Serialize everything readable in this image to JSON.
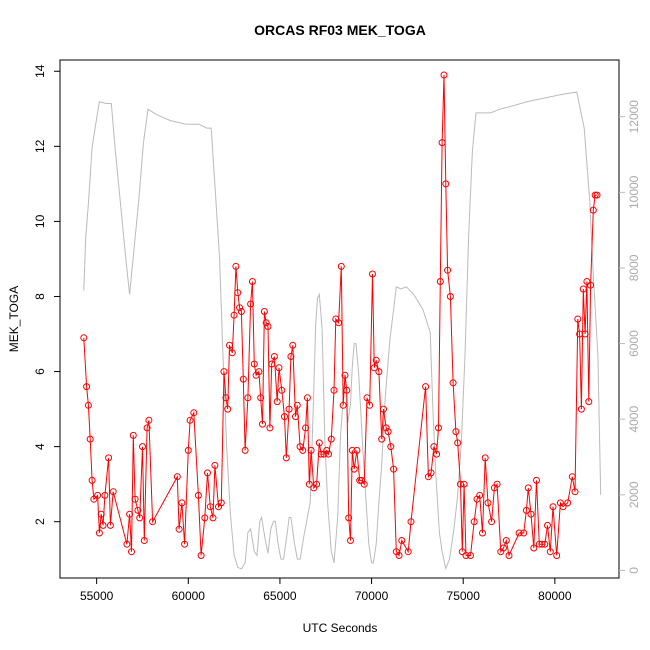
{
  "chart_data": {
    "type": "line",
    "title": "ORCAS RF03 MEK_TOGA",
    "xlabel": "UTC Seconds",
    "ylabel": "MEK_TOGA",
    "xlim": [
      53000,
      83500
    ],
    "ylim": [
      0.5,
      14.3
    ],
    "y2lim": [
      -200,
      13500
    ],
    "xticks": [
      55000,
      60000,
      65000,
      70000,
      75000,
      80000
    ],
    "xtick_labels": [
      "55000",
      "60000",
      "65000",
      "70000",
      "75000",
      "80000"
    ],
    "yticks": [
      2,
      4,
      6,
      8,
      10,
      12,
      14
    ],
    "ytick_labels": [
      "2",
      "4",
      "6",
      "8",
      "10",
      "12",
      "14"
    ],
    "y2ticks": [
      0,
      2000,
      4000,
      6000,
      8000,
      10000,
      12000
    ],
    "y2tick_labels": [
      "0",
      "2000",
      "4000",
      "6000",
      "8000",
      "10000",
      "12000"
    ],
    "grid": false,
    "colors": {
      "series": "#ff0000",
      "altitude": "#bbbbbb"
    },
    "series": [
      {
        "values": [
          [
            54300,
            6.9
          ],
          [
            54450,
            5.6
          ],
          [
            54550,
            5.1
          ],
          [
            54650,
            4.2
          ],
          [
            54750,
            3.1
          ],
          [
            54850,
            2.6
          ],
          [
            55050,
            2.7
          ],
          [
            55150,
            1.7
          ],
          [
            55250,
            2.2
          ],
          [
            55350,
            1.9
          ],
          [
            55450,
            2.7
          ],
          [
            55650,
            3.7
          ],
          [
            55750,
            1.9
          ],
          [
            55900,
            2.8
          ],
          [
            56650,
            1.4
          ],
          [
            56800,
            2.2
          ],
          [
            56900,
            1.2
          ],
          [
            57000,
            4.3
          ],
          [
            57100,
            2.6
          ],
          [
            57250,
            2.3
          ],
          [
            57350,
            2.1
          ],
          [
            57500,
            4.0
          ],
          [
            57600,
            1.5
          ],
          [
            57750,
            4.5
          ],
          [
            57850,
            4.7
          ],
          [
            58050,
            2.0
          ],
          [
            59400,
            3.2
          ],
          [
            59500,
            1.8
          ],
          [
            59650,
            2.5
          ],
          [
            59800,
            1.4
          ],
          [
            60000,
            3.9
          ],
          [
            60100,
            4.7
          ],
          [
            60300,
            4.9
          ],
          [
            60550,
            2.7
          ],
          [
            60700,
            1.1
          ],
          [
            60900,
            2.1
          ],
          [
            61050,
            3.3
          ],
          [
            61200,
            2.4
          ],
          [
            61350,
            2.1
          ],
          [
            61450,
            3.5
          ],
          [
            61650,
            2.4
          ],
          [
            61800,
            2.5
          ],
          [
            61950,
            6.0
          ],
          [
            62050,
            5.3
          ],
          [
            62150,
            5.0
          ],
          [
            62250,
            6.7
          ],
          [
            62400,
            6.5
          ],
          [
            62500,
            7.5
          ],
          [
            62600,
            8.8
          ],
          [
            62700,
            8.1
          ],
          [
            62800,
            7.7
          ],
          [
            62900,
            7.6
          ],
          [
            63000,
            5.8
          ],
          [
            63100,
            3.9
          ],
          [
            63250,
            5.3
          ],
          [
            63400,
            7.8
          ],
          [
            63500,
            8.4
          ],
          [
            63600,
            6.2
          ],
          [
            63700,
            5.9
          ],
          [
            63850,
            6.0
          ],
          [
            63950,
            5.3
          ],
          [
            64050,
            4.6
          ],
          [
            64150,
            7.6
          ],
          [
            64250,
            7.3
          ],
          [
            64350,
            7.2
          ],
          [
            64450,
            4.5
          ],
          [
            64550,
            6.2
          ],
          [
            64700,
            6.4
          ],
          [
            64850,
            5.2
          ],
          [
            64950,
            6.1
          ],
          [
            65100,
            5.5
          ],
          [
            65250,
            4.8
          ],
          [
            65350,
            3.7
          ],
          [
            65500,
            5.0
          ],
          [
            65600,
            6.4
          ],
          [
            65700,
            6.7
          ],
          [
            65850,
            4.8
          ],
          [
            65950,
            5.1
          ],
          [
            66100,
            4.0
          ],
          [
            66250,
            3.9
          ],
          [
            66400,
            4.5
          ],
          [
            66500,
            5.3
          ],
          [
            66600,
            3.0
          ],
          [
            66700,
            3.9
          ],
          [
            66850,
            2.9
          ],
          [
            67000,
            3.0
          ],
          [
            67150,
            4.1
          ],
          [
            67250,
            3.8
          ],
          [
            67400,
            3.8
          ],
          [
            67550,
            3.9
          ],
          [
            67650,
            3.8
          ],
          [
            67800,
            4.2
          ],
          [
            67950,
            5.5
          ],
          [
            68050,
            7.4
          ],
          [
            68200,
            7.3
          ],
          [
            68350,
            8.8
          ],
          [
            68450,
            5.1
          ],
          [
            68550,
            5.9
          ],
          [
            68650,
            5.5
          ],
          [
            68750,
            2.1
          ],
          [
            68850,
            1.5
          ],
          [
            68950,
            3.9
          ],
          [
            69050,
            3.4
          ],
          [
            69200,
            3.9
          ],
          [
            69350,
            3.1
          ],
          [
            69450,
            3.1
          ],
          [
            69600,
            3.0
          ],
          [
            69750,
            5.3
          ],
          [
            69900,
            5.1
          ],
          [
            70050,
            8.6
          ],
          [
            70150,
            6.1
          ],
          [
            70250,
            6.3
          ],
          [
            70400,
            6.0
          ],
          [
            70550,
            4.2
          ],
          [
            70650,
            5.0
          ],
          [
            70800,
            4.5
          ],
          [
            70900,
            4.4
          ],
          [
            71050,
            4.0
          ],
          [
            71200,
            3.4
          ],
          [
            71350,
            1.2
          ],
          [
            71500,
            1.1
          ],
          [
            71650,
            1.5
          ],
          [
            72000,
            1.2
          ],
          [
            72150,
            2.0
          ],
          [
            72950,
            5.6
          ],
          [
            73100,
            3.2
          ],
          [
            73250,
            3.3
          ],
          [
            73400,
            4.0
          ],
          [
            73550,
            3.8
          ],
          [
            73650,
            4.5
          ],
          [
            73750,
            8.4
          ],
          [
            73850,
            12.1
          ],
          [
            73950,
            13.9
          ],
          [
            74050,
            11.0
          ],
          [
            74150,
            8.7
          ],
          [
            74300,
            8.0
          ],
          [
            74450,
            5.7
          ],
          [
            74600,
            4.4
          ],
          [
            74700,
            4.1
          ],
          [
            74850,
            3.0
          ],
          [
            74950,
            1.2
          ],
          [
            75050,
            3.0
          ],
          [
            75150,
            1.1
          ],
          [
            75400,
            1.1
          ],
          [
            75600,
            2.0
          ],
          [
            75750,
            2.6
          ],
          [
            75900,
            2.7
          ],
          [
            76050,
            1.7
          ],
          [
            76200,
            3.7
          ],
          [
            76350,
            2.5
          ],
          [
            76550,
            2.0
          ],
          [
            76700,
            2.9
          ],
          [
            76850,
            3.0
          ],
          [
            77050,
            1.2
          ],
          [
            77200,
            1.3
          ],
          [
            77350,
            1.5
          ],
          [
            77500,
            1.1
          ],
          [
            78050,
            1.7
          ],
          [
            78300,
            1.7
          ],
          [
            78450,
            2.3
          ],
          [
            78550,
            2.9
          ],
          [
            78700,
            2.2
          ],
          [
            78850,
            1.3
          ],
          [
            79000,
            3.1
          ],
          [
            79150,
            1.4
          ],
          [
            79300,
            1.4
          ],
          [
            79450,
            1.4
          ],
          [
            79600,
            1.9
          ],
          [
            79750,
            1.2
          ],
          [
            79900,
            2.4
          ],
          [
            80100,
            1.1
          ],
          [
            80300,
            2.5
          ],
          [
            80450,
            2.4
          ],
          [
            80700,
            2.5
          ],
          [
            80950,
            3.2
          ],
          [
            81100,
            2.8
          ],
          [
            81250,
            7.4
          ],
          [
            81350,
            7.0
          ],
          [
            81450,
            5.0
          ],
          [
            81550,
            8.2
          ],
          [
            81650,
            7.0
          ],
          [
            81750,
            8.4
          ],
          [
            81850,
            5.2
          ],
          [
            81950,
            8.3
          ],
          [
            82100,
            10.3
          ],
          [
            82200,
            10.7
          ],
          [
            82300,
            10.7
          ]
        ]
      },
      {
        "axis": "right",
        "values": [
          [
            54300,
            7400
          ],
          [
            54400,
            8800
          ],
          [
            54550,
            9700
          ],
          [
            54750,
            11200
          ],
          [
            54950,
            11800
          ],
          [
            55150,
            12400
          ],
          [
            55500,
            12350
          ],
          [
            55800,
            12350
          ],
          [
            56000,
            11200
          ],
          [
            56300,
            9700
          ],
          [
            56600,
            8200
          ],
          [
            56800,
            7300
          ],
          [
            57000,
            8300
          ],
          [
            57300,
            9800
          ],
          [
            57550,
            11300
          ],
          [
            57800,
            12200
          ],
          [
            58300,
            12050
          ],
          [
            59000,
            11900
          ],
          [
            59900,
            11800
          ],
          [
            60600,
            11800
          ],
          [
            61000,
            11700
          ],
          [
            61250,
            11700
          ],
          [
            61450,
            10200
          ],
          [
            61700,
            8300
          ],
          [
            61900,
            5600
          ],
          [
            62100,
            3200
          ],
          [
            62300,
            1500
          ],
          [
            62500,
            400
          ],
          [
            62700,
            80
          ],
          [
            62900,
            40
          ],
          [
            63100,
            200
          ],
          [
            63250,
            1000
          ],
          [
            63400,
            1100
          ],
          [
            63600,
            500
          ],
          [
            63750,
            400
          ],
          [
            63900,
            1300
          ],
          [
            64000,
            1400
          ],
          [
            64200,
            800
          ],
          [
            64350,
            450
          ],
          [
            64500,
            1100
          ],
          [
            64650,
            1300
          ],
          [
            64750,
            1300
          ],
          [
            64900,
            700
          ],
          [
            65050,
            300
          ],
          [
            65200,
            300
          ],
          [
            65400,
            1000
          ],
          [
            65500,
            1400
          ],
          [
            65600,
            1400
          ],
          [
            65800,
            700
          ],
          [
            65950,
            300
          ],
          [
            66100,
            300
          ],
          [
            66300,
            900
          ],
          [
            66500,
            1400
          ],
          [
            66650,
            1800
          ],
          [
            66800,
            4000
          ],
          [
            66950,
            6500
          ],
          [
            67050,
            7200
          ],
          [
            67150,
            7300
          ],
          [
            67300,
            6400
          ],
          [
            67450,
            3500
          ],
          [
            67600,
            1800
          ],
          [
            67800,
            500
          ],
          [
            67950,
            200
          ],
          [
            68150,
            1400
          ],
          [
            68300,
            3500
          ],
          [
            68550,
            5200
          ],
          [
            68700,
            3900
          ],
          [
            68850,
            4400
          ],
          [
            68950,
            5400
          ],
          [
            69050,
            6000
          ],
          [
            69150,
            6000
          ],
          [
            69300,
            5200
          ],
          [
            69500,
            3400
          ],
          [
            69700,
            1800
          ],
          [
            69850,
            700
          ],
          [
            70000,
            200
          ],
          [
            70100,
            200
          ],
          [
            70250,
            700
          ],
          [
            70400,
            1800
          ],
          [
            70550,
            2800
          ],
          [
            70750,
            4600
          ],
          [
            71000,
            6100
          ],
          [
            71200,
            6900
          ],
          [
            71350,
            7500
          ],
          [
            71600,
            7450
          ],
          [
            71900,
            7500
          ],
          [
            72300,
            7300
          ],
          [
            72800,
            6900
          ],
          [
            73200,
            6300
          ],
          [
            73350,
            4200
          ],
          [
            73500,
            2600
          ],
          [
            73700,
            1000
          ],
          [
            73850,
            500
          ],
          [
            74050,
            50
          ],
          [
            74250,
            300
          ],
          [
            74500,
            1100
          ],
          [
            74700,
            2000
          ],
          [
            74900,
            3400
          ],
          [
            75100,
            5700
          ],
          [
            75300,
            8900
          ],
          [
            75500,
            11100
          ],
          [
            75700,
            12100
          ],
          [
            76100,
            12100
          ],
          [
            76500,
            12100
          ],
          [
            77000,
            12200
          ],
          [
            77800,
            12300
          ],
          [
            78500,
            12400
          ],
          [
            79500,
            12500
          ],
          [
            80500,
            12600
          ],
          [
            81200,
            12650
          ],
          [
            81600,
            11700
          ],
          [
            81900,
            9800
          ],
          [
            82100,
            7800
          ],
          [
            82350,
            5700
          ],
          [
            82500,
            2000
          ]
        ]
      }
    ]
  }
}
